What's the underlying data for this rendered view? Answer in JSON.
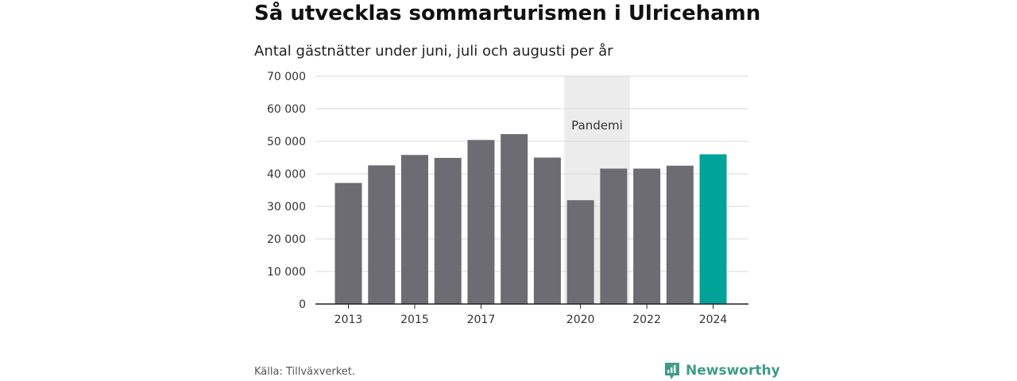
{
  "title": "Så utvecklas sommarturismen i Ulricehamn",
  "subtitle": "Antal gästnätter under juni, juli och augusti per år",
  "source": "Källa: Tillväxverket.",
  "brand": {
    "name": "Newsworthy",
    "icon": "bar-chart-speech-icon",
    "color": "#3f9c8a"
  },
  "chart_data": {
    "type": "bar",
    "categories": [
      "2013",
      "2014",
      "2015",
      "2016",
      "2017",
      "2018",
      "2019",
      "2020",
      "2021",
      "2022",
      "2023",
      "2024"
    ],
    "values": [
      37200,
      42600,
      45800,
      44900,
      50400,
      52200,
      45000,
      31900,
      41600,
      41600,
      42500,
      46000
    ],
    "x_tick_labels": [
      "2013",
      "2015",
      "2017",
      "2020",
      "2022",
      "2024"
    ],
    "y_tick_labels": [
      "0",
      "10 000",
      "20 000",
      "30 000",
      "40 000",
      "50 000",
      "60 000",
      "70 000"
    ],
    "ylim": [
      0,
      70000
    ],
    "xlabel": "",
    "ylabel": "",
    "grid": true,
    "colors": {
      "default": "#6d6c73",
      "highlight": "#00a39a",
      "band": "#ececec"
    },
    "highlight_category": "2024",
    "annotations": [
      {
        "label": "Pandemi",
        "from": "2020",
        "to": "2021"
      }
    ]
  }
}
